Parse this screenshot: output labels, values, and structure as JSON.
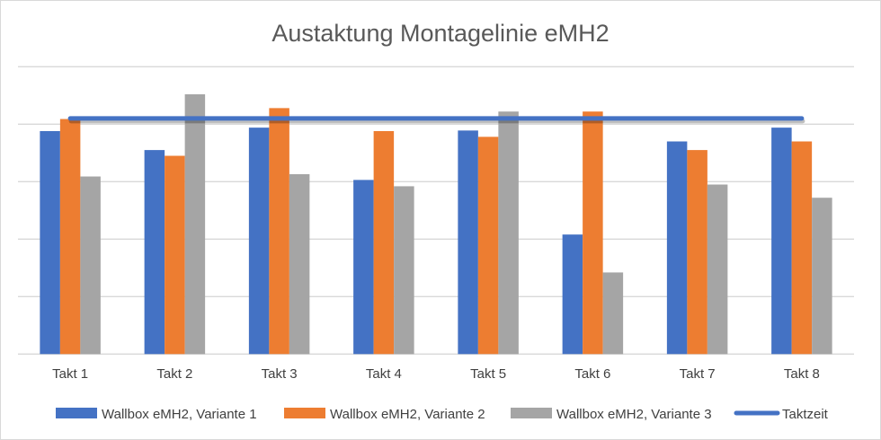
{
  "chart_data": {
    "type": "bar",
    "title": "Austaktung Montagelinie eMH2",
    "xlabel": "",
    "ylabel": "",
    "ylim": [
      0,
      5
    ],
    "grid": true,
    "y_tick_labels_shown": false,
    "legend_position": "bottom",
    "categories": [
      "Takt 1",
      "Takt 2",
      "Takt 3",
      "Takt 4",
      "Takt 5",
      "Takt 6",
      "Takt 7",
      "Takt 8"
    ],
    "series": [
      {
        "name": "Wallbox eMH2, Variante 1",
        "type": "bar",
        "color": "#4472C4",
        "values": [
          3.88,
          3.55,
          3.94,
          3.03,
          3.89,
          2.08,
          3.7,
          3.94
        ]
      },
      {
        "name": "Wallbox eMH2, Variante 2",
        "type": "bar",
        "color": "#ED7D31",
        "values": [
          4.09,
          3.45,
          4.28,
          3.88,
          3.78,
          4.22,
          3.55,
          3.7
        ]
      },
      {
        "name": "Wallbox eMH2, Variante 3",
        "type": "bar",
        "color": "#A5A5A5",
        "values": [
          3.09,
          4.52,
          3.13,
          2.92,
          4.22,
          1.42,
          2.95,
          2.72
        ]
      },
      {
        "name": "Taktzeit",
        "type": "line",
        "color": "#4472C4",
        "values": [
          4.1,
          4.1,
          4.1,
          4.1,
          4.1,
          4.1,
          4.1,
          4.1
        ]
      }
    ]
  }
}
